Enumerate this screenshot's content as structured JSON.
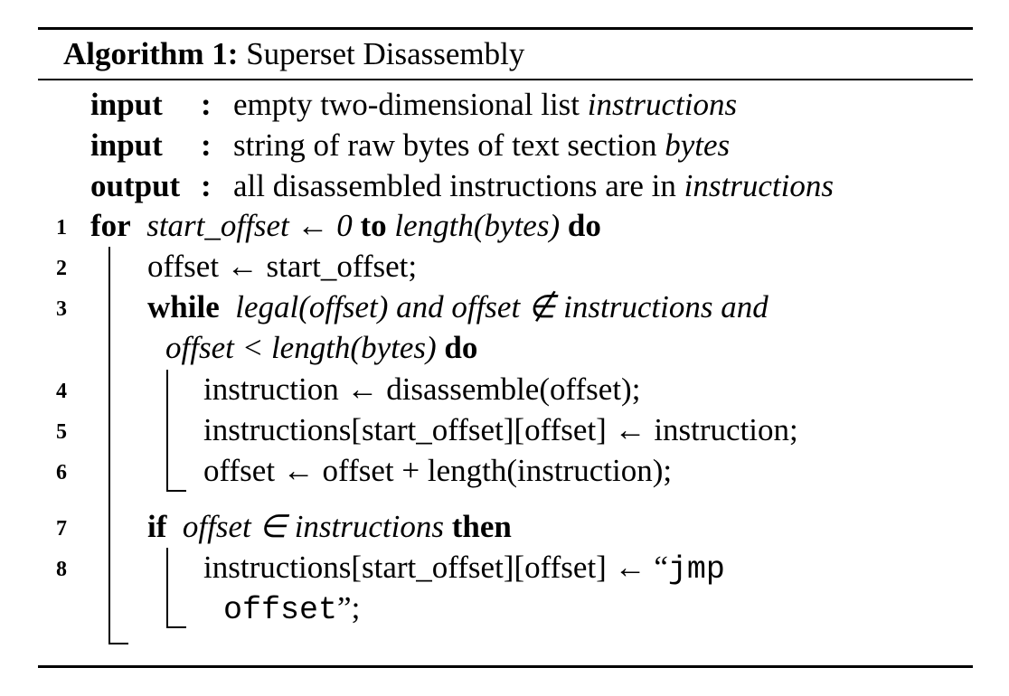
{
  "algorithm": {
    "label": "Algorithm 1:",
    "title": "Superset Disassembly"
  },
  "header": {
    "input1": {
      "key": "input",
      "colon": ":",
      "text": "empty two-dimensional list ",
      "var": "instructions"
    },
    "input2": {
      "key": "input",
      "colon": ":",
      "text": "string of raw bytes of text section ",
      "var": "bytes"
    },
    "output": {
      "key": "output",
      "colon": ":",
      "text": "all disassembled instructions are in ",
      "var": "instructions"
    }
  },
  "line_numbers": [
    "1",
    "2",
    "3",
    "4",
    "5",
    "6",
    "7",
    "8"
  ],
  "code": {
    "l1": {
      "kw_for": "for",
      "cond": "start_offset ← 0",
      "kw_to": "to",
      "limit": "length(bytes)",
      "kw_do": "do"
    },
    "l2": {
      "text": "offset ← start_offset;"
    },
    "l3": {
      "kw_while": "while",
      "cond": "legal(offset) and offset ∉ instructions and"
    },
    "l3b": {
      "cond": "offset < length(bytes)",
      "kw_do": "do"
    },
    "l4": {
      "text": "instruction ← disassemble(offset);"
    },
    "l5": {
      "text": "instructions[start_offset][offset] ← instruction;"
    },
    "l6": {
      "text": "offset ← offset + length(instruction);"
    },
    "l7": {
      "kw_if": "if",
      "cond": "offset ∈ instructions",
      "kw_then": "then"
    },
    "l8": {
      "text": "instructions[start_offset][offset] ← “",
      "mono1": "jmp"
    },
    "l8b": {
      "mono2": "offset",
      "end": "”;"
    }
  }
}
